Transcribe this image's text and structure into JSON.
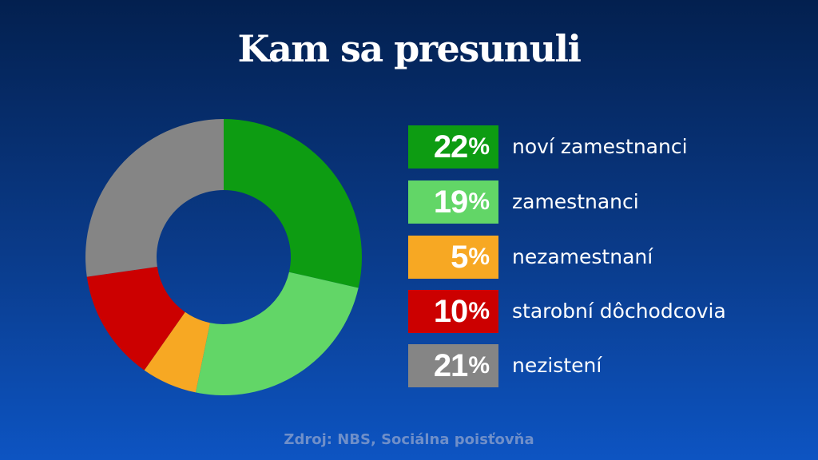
{
  "title": "Kam sa presunuli",
  "source": "Zdroj: NBS, Sociálna poisťovňa",
  "chart_data": {
    "type": "pie",
    "donut": true,
    "start_angle_deg": 0,
    "series": [
      {
        "name": "noví zamestnanci",
        "value": 22,
        "display": "22",
        "color": "#0d9c12"
      },
      {
        "name": "zamestnanci",
        "value": 19,
        "display": "19",
        "color": "#62d667"
      },
      {
        "name": "nezamestnaní",
        "value": 5,
        "display": "5",
        "color": "#f7a823"
      },
      {
        "name": "starobní dôchodcovia",
        "value": 10,
        "display": "10",
        "color": "#cc0000"
      },
      {
        "name": "nezistení",
        "value": 21,
        "display": "21",
        "color": "#858585"
      }
    ],
    "unit": "%"
  }
}
